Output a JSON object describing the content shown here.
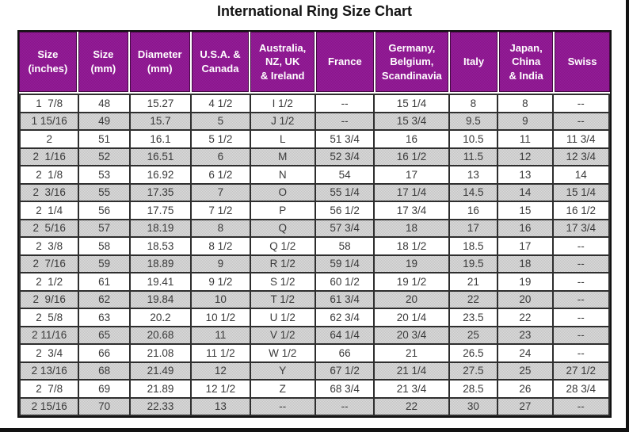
{
  "chart_data": {
    "type": "table",
    "title": "International Ring Size Chart",
    "columns": [
      "Size\n(inches)",
      "Size\n(mm)",
      "Diameter\n(mm)",
      "U.S.A. &\nCanada",
      "Australia,\nNZ, UK\n& Ireland",
      "France",
      "Germany,\nBelgium,\nScandinavia",
      "Italy",
      "Japan,\nChina\n& India",
      "Swiss"
    ],
    "rows": [
      [
        "1  7/8",
        "48",
        "15.27",
        "4 1/2",
        "I 1/2",
        "--",
        "15 1/4",
        "8",
        "8",
        "--"
      ],
      [
        "1 15/16",
        "49",
        "15.7",
        "5",
        "J 1/2",
        "--",
        "15 3/4",
        "9.5",
        "9",
        "--"
      ],
      [
        "2",
        "51",
        "16.1",
        "5 1/2",
        "L",
        "51 3/4",
        "16",
        "10.5",
        "11",
        "11 3/4"
      ],
      [
        "2  1/16",
        "52",
        "16.51",
        "6",
        "M",
        "52 3/4",
        "16 1/2",
        "11.5",
        "12",
        "12 3/4"
      ],
      [
        "2  1/8",
        "53",
        "16.92",
        "6 1/2",
        "N",
        "54",
        "17",
        "13",
        "13",
        "14"
      ],
      [
        "2  3/16",
        "55",
        "17.35",
        "7",
        "O",
        "55 1/4",
        "17 1/4",
        "14.5",
        "14",
        "15 1/4"
      ],
      [
        "2  1/4",
        "56",
        "17.75",
        "7 1/2",
        "P",
        "56 1/2",
        "17 3/4",
        "16",
        "15",
        "16 1/2"
      ],
      [
        "2  5/16",
        "57",
        "18.19",
        "8",
        "Q",
        "57 3/4",
        "18",
        "17",
        "16",
        "17 3/4"
      ],
      [
        "2  3/8",
        "58",
        "18.53",
        "8 1/2",
        "Q 1/2",
        "58",
        "18 1/2",
        "18.5",
        "17",
        "--"
      ],
      [
        "2  7/16",
        "59",
        "18.89",
        "9",
        "R 1/2",
        "59 1/4",
        "19",
        "19.5",
        "18",
        "--"
      ],
      [
        "2  1/2",
        "61",
        "19.41",
        "9 1/2",
        "S 1/2",
        "60 1/2",
        "19 1/2",
        "21",
        "19",
        "--"
      ],
      [
        "2  9/16",
        "62",
        "19.84",
        "10",
        "T 1/2",
        "61 3/4",
        "20",
        "22",
        "20",
        "--"
      ],
      [
        "2  5/8",
        "63",
        "20.2",
        "10 1/2",
        "U 1/2",
        "62 3/4",
        "20 1/4",
        "23.5",
        "22",
        "--"
      ],
      [
        "2 11/16",
        "65",
        "20.68",
        "11",
        "V 1/2",
        "64 1/4",
        "20 3/4",
        "25",
        "23",
        "--"
      ],
      [
        "2  3/4",
        "66",
        "21.08",
        "11 1/2",
        "W 1/2",
        "66",
        "21",
        "26.5",
        "24",
        "--"
      ],
      [
        "2 13/16",
        "68",
        "21.49",
        "12",
        "Y",
        "67 1/2",
        "21 1/4",
        "27.5",
        "25",
        "27 1/2"
      ],
      [
        "2  7/8",
        "69",
        "21.89",
        "12 1/2",
        "Z",
        "68 3/4",
        "21 3/4",
        "28.5",
        "26",
        "28 3/4"
      ],
      [
        "2 15/16",
        "70",
        "22.33",
        "13",
        "--",
        "--",
        "22",
        "30",
        "27",
        "--"
      ]
    ],
    "layout_hints": {
      "header_style": "purple band with white separators",
      "row_striping": "even rows dithered gray",
      "grid": "on"
    }
  },
  "empty_cell_marker": "--",
  "colors": {
    "header_bg": "#8B1389",
    "header_text": "#FFFFFF",
    "alt_row_bg": "#CFCFCF",
    "grid_border": "#2E2E2E",
    "body_text": "#3A3A3A",
    "frame_border": "#121212"
  }
}
